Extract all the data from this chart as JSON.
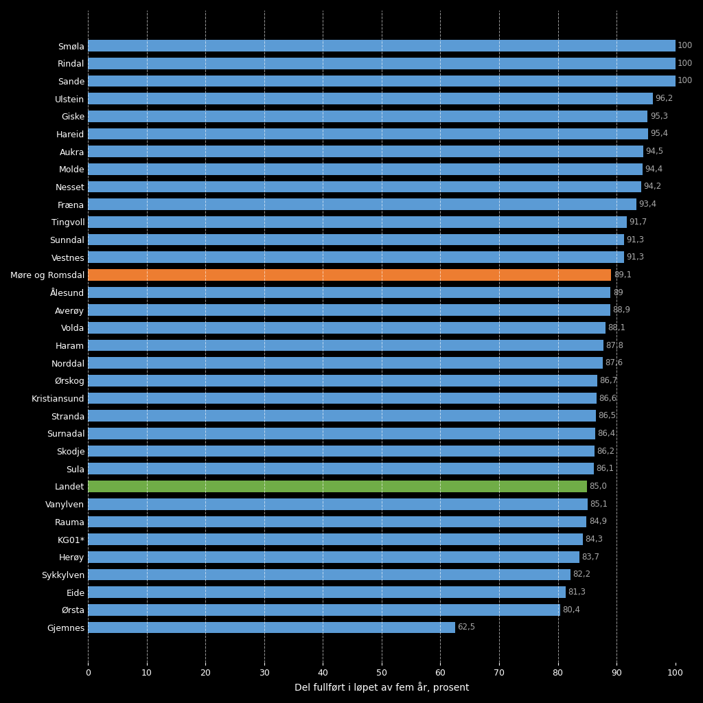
{
  "xlabel": "Del fullført i løpet av fem år, prosent",
  "categories": [
    "Smøla",
    "Rindal",
    "Sande",
    "Ulstein",
    "Giske",
    "Hareid",
    "Aukra",
    "Molde",
    "Nesset",
    "Fræna",
    "Tingvoll",
    "Sunndal",
    "Vestnes",
    "Møre og Romsdal",
    "Ålesund",
    "Averøy",
    "Volda",
    "Haram",
    "Norddal",
    "Ørskog",
    "Kristiansund",
    "Stranda",
    "Surnadal",
    "Skodje",
    "Sula",
    "Landet",
    "Vanylven",
    "Rauma",
    "KG01*",
    "Herøy",
    "Sykkylven",
    "Eide",
    "Ørsta",
    "Gjemnes"
  ],
  "values": [
    100,
    100,
    100,
    96.2,
    95.3,
    95.4,
    94.5,
    94.4,
    94.2,
    93.4,
    91.7,
    91.3,
    91.3,
    89.1,
    89,
    88.9,
    88.1,
    87.8,
    87.6,
    86.7,
    86.6,
    86.5,
    86.4,
    86.2,
    86.1,
    85.0,
    85.1,
    84.9,
    84.3,
    83.7,
    82.2,
    81.3,
    80.4,
    62.5
  ],
  "value_labels": [
    "100",
    "100",
    "100",
    "96,2",
    "95,3",
    "95,4",
    "94,5",
    "94,4",
    "94,2",
    "93,4",
    "91,7",
    "91,3",
    "91,3",
    "89,1",
    "89",
    "88,9",
    "88,1",
    "87,8",
    "87,6",
    "86,7",
    "86,6",
    "86,5",
    "86,4",
    "86,2",
    "86,1",
    "85,0",
    "85,1",
    "84,9",
    "84,3",
    "83,7",
    "82,2",
    "81,3",
    "80,4",
    "62,5"
  ],
  "bar_colors": [
    "#5B9BD5",
    "#5B9BD5",
    "#5B9BD5",
    "#5B9BD5",
    "#5B9BD5",
    "#5B9BD5",
    "#5B9BD5",
    "#5B9BD5",
    "#5B9BD5",
    "#5B9BD5",
    "#5B9BD5",
    "#5B9BD5",
    "#5B9BD5",
    "#ED7D31",
    "#5B9BD5",
    "#5B9BD5",
    "#5B9BD5",
    "#5B9BD5",
    "#5B9BD5",
    "#5B9BD5",
    "#5B9BD5",
    "#5B9BD5",
    "#5B9BD5",
    "#5B9BD5",
    "#5B9BD5",
    "#70AD47",
    "#5B9BD5",
    "#5B9BD5",
    "#5B9BD5",
    "#5B9BD5",
    "#5B9BD5",
    "#5B9BD5",
    "#5B9BD5",
    "#5B9BD5"
  ],
  "xlim": [
    0,
    100
  ],
  "xticks": [
    0,
    10,
    20,
    30,
    40,
    50,
    60,
    70,
    80,
    90,
    100
  ],
  "background_color": "#000000",
  "text_color": "#FFFFFF",
  "value_label_color": "#AAAAAA",
  "grid_color": "#FFFFFF",
  "bar_height": 0.65,
  "label_fontsize": 10,
  "tick_fontsize": 9,
  "value_fontsize": 8.5
}
